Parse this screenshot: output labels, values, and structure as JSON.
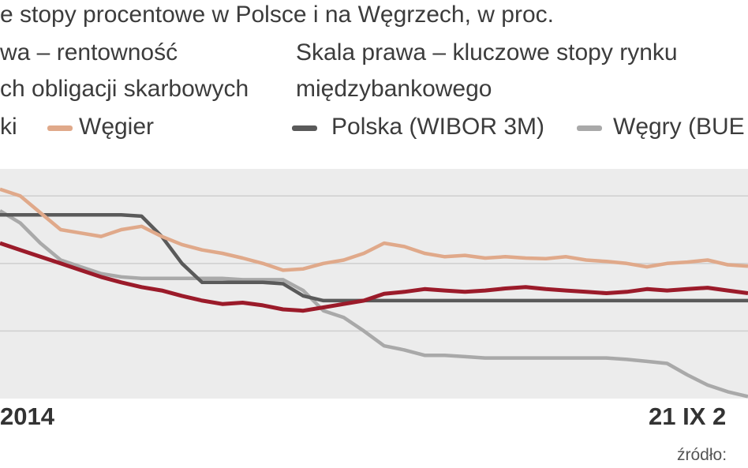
{
  "header": {
    "title": "e stopy procentowe w Polsce i na Węgrzech, w proc.",
    "left_scale_line1": "wa – rentowność",
    "left_scale_line2": "ch obligacji skarbowych",
    "right_scale_line1": "Skala prawa – kluczowe stopy rynku",
    "right_scale_line2": "międzybankowego"
  },
  "legend": {
    "item1": "ki",
    "item2": "Węgier",
    "item3": "Polska (WIBOR 3M)",
    "item4": "Węgry (BUE"
  },
  "source_label": "źródło:",
  "colors": {
    "poland_bond": "#9b1b2a",
    "hungary_bond": "#e0a98a",
    "wibor": "#5a5a5a",
    "bubor": "#a9a9a9",
    "plot_bg": "#ececec",
    "grid": "#cfcfcf"
  },
  "chart_data": {
    "type": "line",
    "x_tick_labels": [
      "2014",
      "21 IX 2"
    ],
    "grid": true,
    "series": [
      {
        "values": [
          2.3,
          2.2,
          2.1,
          2.0,
          1.9,
          1.8,
          1.72,
          1.65,
          1.6,
          1.52,
          1.45,
          1.4,
          1.42,
          1.38,
          1.32,
          1.3,
          1.35,
          1.4,
          1.45,
          1.55,
          1.58,
          1.62,
          1.6,
          1.58,
          1.6,
          1.63,
          1.65,
          1.62,
          1.6,
          1.58,
          1.56,
          1.58,
          1.62,
          1.6,
          1.62,
          1.64,
          1.6,
          1.56
        ]
      },
      {
        "values": [
          3.1,
          3.0,
          2.75,
          2.5,
          2.45,
          2.4,
          2.5,
          2.55,
          2.4,
          2.28,
          2.2,
          2.15,
          2.08,
          2.0,
          1.9,
          1.92,
          2.0,
          2.05,
          2.15,
          2.3,
          2.25,
          2.15,
          2.1,
          2.12,
          2.08,
          2.1,
          2.08,
          2.07,
          2.1,
          2.05,
          2.03,
          2.0,
          1.95,
          2.0,
          2.02,
          2.05,
          1.98,
          1.96
        ]
      },
      {
        "values": [
          2.72,
          2.72,
          2.72,
          2.72,
          2.72,
          2.72,
          2.72,
          2.7,
          2.4,
          2.0,
          1.72,
          1.72,
          1.72,
          1.72,
          1.7,
          1.52,
          1.45,
          1.45,
          1.45,
          1.45,
          1.45,
          1.45,
          1.45,
          1.45,
          1.45,
          1.45,
          1.45,
          1.45,
          1.45,
          1.45,
          1.45,
          1.45,
          1.45,
          1.45,
          1.45,
          1.45,
          1.45,
          1.45
        ]
      },
      {
        "values": [
          2.78,
          2.6,
          2.3,
          2.05,
          1.95,
          1.85,
          1.8,
          1.78,
          1.78,
          1.78,
          1.78,
          1.78,
          1.76,
          1.76,
          1.76,
          1.6,
          1.3,
          1.2,
          1.0,
          0.78,
          0.72,
          0.64,
          0.64,
          0.62,
          0.6,
          0.6,
          0.6,
          0.6,
          0.6,
          0.6,
          0.6,
          0.58,
          0.55,
          0.52,
          0.35,
          0.2,
          0.1,
          0.03
        ]
      }
    ]
  }
}
